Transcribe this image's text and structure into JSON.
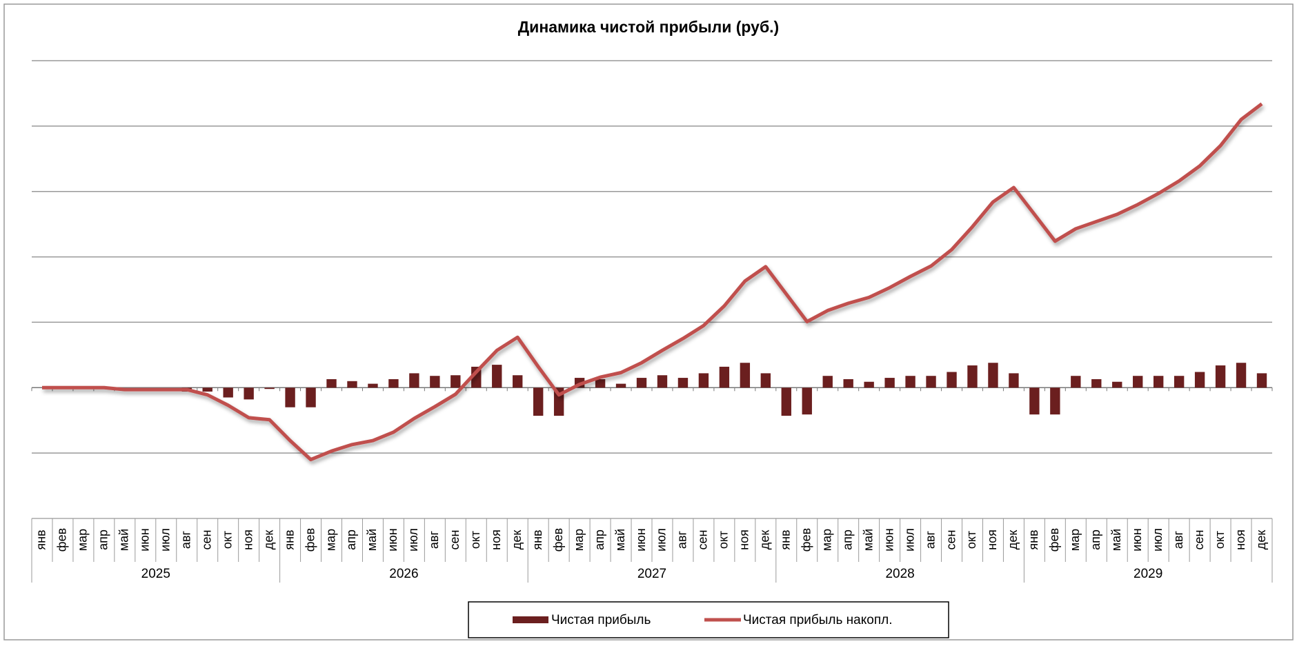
{
  "chart_data": {
    "type": "bar-line",
    "title": "Динамика чистой прибыли (руб.)",
    "categories": [
      "янв",
      "фев",
      "мар",
      "апр",
      "май",
      "июн",
      "июл",
      "авг",
      "сен",
      "окт",
      "ноя",
      "дек",
      "янв",
      "фев",
      "мар",
      "апр",
      "май",
      "июн",
      "июл",
      "авг",
      "сен",
      "окт",
      "ноя",
      "дек",
      "янв",
      "фев",
      "мар",
      "апр",
      "май",
      "июн",
      "июл",
      "авг",
      "сен",
      "окт",
      "ноя",
      "дек",
      "янв",
      "фев",
      "мар",
      "апр",
      "май",
      "июн",
      "июл",
      "авг",
      "сен",
      "окт",
      "ноя",
      "дек",
      "янв",
      "фев",
      "мар",
      "апр",
      "май",
      "июн",
      "июл",
      "авг",
      "сен",
      "окт",
      "ноя",
      "дек"
    ],
    "years": [
      "2025",
      "2026",
      "2027",
      "2028",
      "2029"
    ],
    "series": [
      {
        "name": "Чистая прибыль",
        "type": "bar",
        "color": "#6b1f1f",
        "values": [
          0,
          0,
          0,
          0,
          0,
          0,
          0,
          -0.06,
          -0.06,
          -0.15,
          -0.18,
          -0.02,
          -0.3,
          -0.3,
          0.13,
          0.1,
          0.06,
          0.13,
          0.22,
          0.18,
          0.19,
          0.32,
          0.35,
          0.19,
          -0.43,
          -0.43,
          0.15,
          0.13,
          0.06,
          0.15,
          0.19,
          0.15,
          0.22,
          0.32,
          0.38,
          0.22,
          -0.43,
          -0.41,
          0.18,
          0.13,
          0.09,
          0.15,
          0.18,
          0.18,
          0.24,
          0.34,
          0.38,
          0.22,
          -0.41,
          -0.41,
          0.18,
          0.13,
          0.09,
          0.18,
          0.18,
          0.18,
          0.24,
          0.34,
          0.38,
          0.22
        ]
      },
      {
        "name": "Чистая прибыль накопл.",
        "type": "line",
        "color": "#c0504d",
        "values": [
          0,
          0,
          0,
          0,
          -0.03,
          -0.03,
          -0.03,
          -0.03,
          -0.11,
          -0.27,
          -0.46,
          -0.49,
          -0.81,
          -1.1,
          -0.97,
          -0.87,
          -0.81,
          -0.68,
          -0.47,
          -0.29,
          -0.1,
          0.24,
          0.57,
          0.77,
          0.32,
          -0.11,
          0.05,
          0.16,
          0.23,
          0.38,
          0.57,
          0.75,
          0.95,
          1.25,
          1.63,
          1.85,
          1.43,
          1.01,
          1.18,
          1.29,
          1.38,
          1.53,
          1.7,
          1.86,
          2.11,
          2.46,
          2.84,
          3.06,
          2.65,
          2.24,
          2.43,
          2.54,
          2.65,
          2.8,
          2.97,
          3.16,
          3.39,
          3.7,
          4.1,
          4.34
        ]
      }
    ],
    "ylim": [
      -2,
      5
    ],
    "yticks": [
      -1,
      0,
      1,
      2,
      3,
      4,
      5
    ],
    "grid": true,
    "legend": "bottom"
  }
}
